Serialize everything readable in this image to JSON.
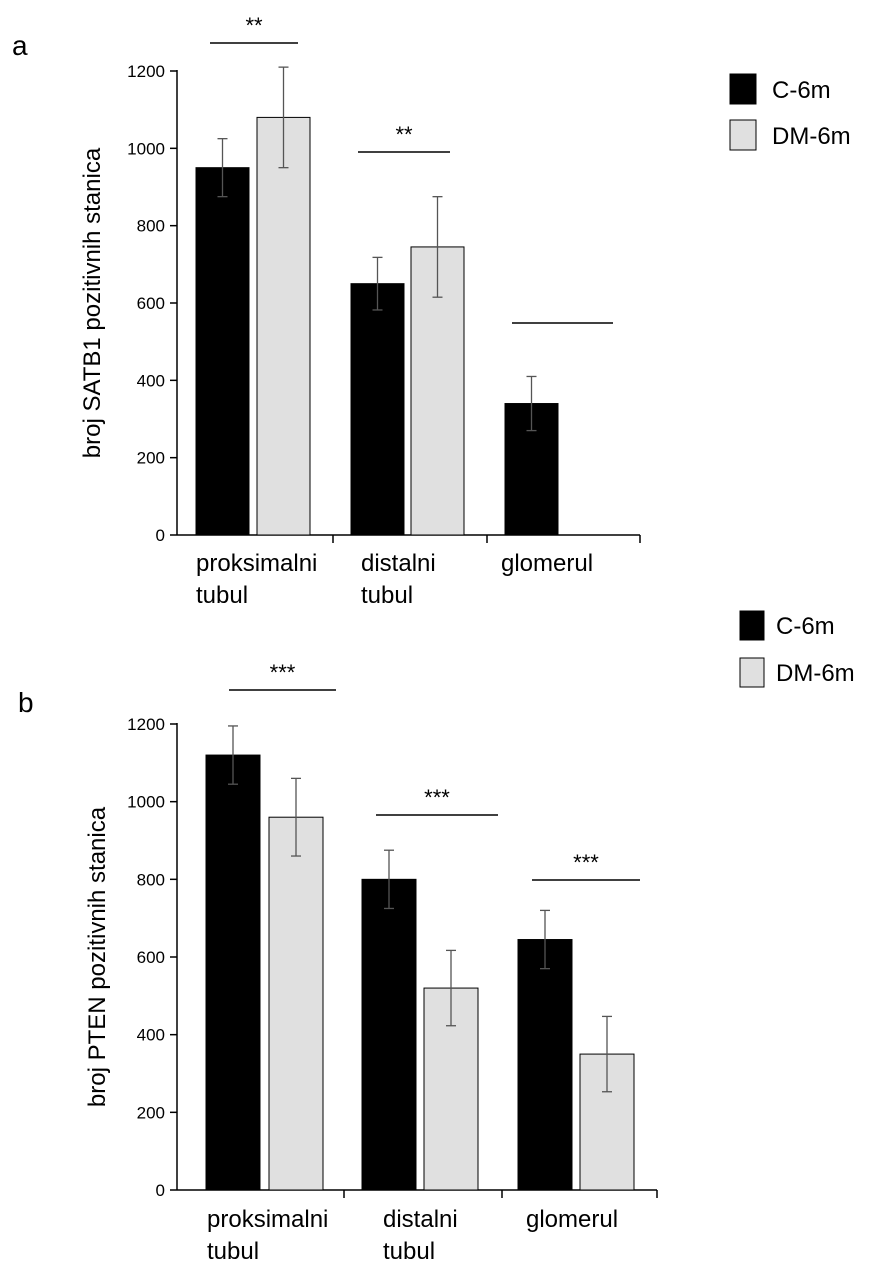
{
  "colors": {
    "C-6m": "#000000",
    "DM-6m": "#e0e0e0",
    "axis": "#000000"
  },
  "chart_data": [
    {
      "panel": "a",
      "type": "bar",
      "ylabel": "broj SATB1 pozitivnih stanica",
      "ylim": [
        0,
        1200
      ],
      "yticks": [
        "0",
        "200",
        "400",
        "600",
        "800",
        "1000",
        "1200"
      ],
      "categories": [
        [
          "proksimalni",
          "tubul"
        ],
        [
          "distalni",
          "tubul"
        ],
        [
          "glomerul"
        ]
      ],
      "series": [
        {
          "name": "C-6m",
          "values": [
            950,
            650,
            340
          ],
          "errors": [
            75,
            68,
            70
          ]
        },
        {
          "name": "DM-6m",
          "values": [
            1080,
            745,
            null
          ],
          "errors": [
            130,
            130,
            null
          ]
        }
      ],
      "significance": [
        "**",
        "**",
        ""
      ],
      "legend": {
        "labels": [
          "C-6m",
          "DM-6m"
        ],
        "position": "top-right"
      }
    },
    {
      "panel": "b",
      "type": "bar",
      "ylabel": "broj PTEN pozitivnih stanica",
      "ylim": [
        0,
        1200
      ],
      "yticks": [
        "0",
        "200",
        "400",
        "600",
        "800",
        "1000",
        "1200"
      ],
      "categories": [
        [
          "proksimalni",
          "tubul"
        ],
        [
          "distalni",
          "tubul"
        ],
        [
          "glomerul"
        ]
      ],
      "series": [
        {
          "name": "C-6m",
          "values": [
            1120,
            800,
            645
          ],
          "errors": [
            75,
            75,
            75
          ]
        },
        {
          "name": "DM-6m",
          "values": [
            960,
            520,
            350
          ],
          "errors": [
            100,
            97,
            97
          ]
        }
      ],
      "significance": [
        "***",
        "***",
        "***"
      ],
      "legend": {
        "labels": [
          "C-6m",
          "DM-6m"
        ],
        "position": "top-right"
      }
    }
  ]
}
